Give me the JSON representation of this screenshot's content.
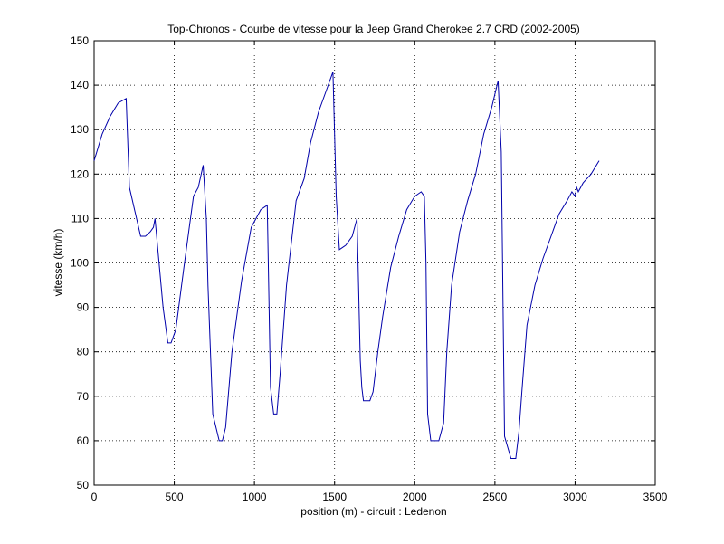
{
  "chart_data": {
    "type": "line",
    "title": "Top-Chronos - Courbe de vitesse pour la Jeep Grand Cherokee 2.7 CRD (2002-2005)",
    "xlabel": "position (m) - circuit : Ledenon",
    "ylabel": "vitesse (km/h)",
    "xlim": [
      0,
      3500
    ],
    "ylim": [
      50,
      150
    ],
    "xticks": [
      0,
      500,
      1000,
      1500,
      2000,
      2500,
      3000,
      3500
    ],
    "yticks": [
      50,
      60,
      70,
      80,
      90,
      100,
      110,
      120,
      130,
      140,
      150
    ],
    "grid": true,
    "line_color": "#0000aa",
    "series": [
      {
        "x": [
          0,
          50,
          100,
          150,
          200,
          220,
          290,
          320,
          350,
          370,
          380,
          430,
          460,
          480,
          510,
          560,
          620,
          650,
          680,
          700,
          710,
          740,
          780,
          800,
          820,
          860,
          920,
          980,
          1040,
          1080,
          1100,
          1120,
          1140,
          1160,
          1200,
          1260,
          1310,
          1350,
          1400,
          1450,
          1490,
          1510,
          1530,
          1570,
          1610,
          1640,
          1660,
          1670,
          1680,
          1720,
          1740,
          1770,
          1800,
          1850,
          1900,
          1950,
          2000,
          2040,
          2060,
          2070,
          2080,
          2100,
          2150,
          2180,
          2200,
          2230,
          2280,
          2330,
          2380,
          2430,
          2480,
          2520,
          2540,
          2560,
          2600,
          2630,
          2650,
          2670,
          2700,
          2750,
          2800,
          2850,
          2900,
          2950,
          2980,
          3000,
          3010,
          3020,
          3050,
          3100,
          3150
        ],
        "values": [
          123,
          129,
          133,
          136,
          137,
          117,
          106,
          106,
          107,
          108,
          110,
          90,
          82,
          82,
          85,
          99,
          115,
          117,
          122,
          110,
          95,
          66,
          60,
          60,
          63,
          80,
          96,
          108,
          112,
          113,
          72,
          66,
          66,
          75,
          95,
          114,
          119,
          127,
          134,
          139,
          143,
          115,
          103,
          104,
          106,
          110,
          78,
          72,
          69,
          69,
          71,
          80,
          88,
          99,
          106,
          112,
          115,
          116,
          115,
          100,
          66,
          60,
          60,
          64,
          80,
          95,
          107,
          114,
          120,
          129,
          135,
          141,
          125,
          61,
          56,
          56,
          62,
          72,
          86,
          95,
          101,
          106,
          111,
          114,
          116,
          115,
          117,
          116,
          118,
          120,
          123
        ]
      }
    ]
  }
}
